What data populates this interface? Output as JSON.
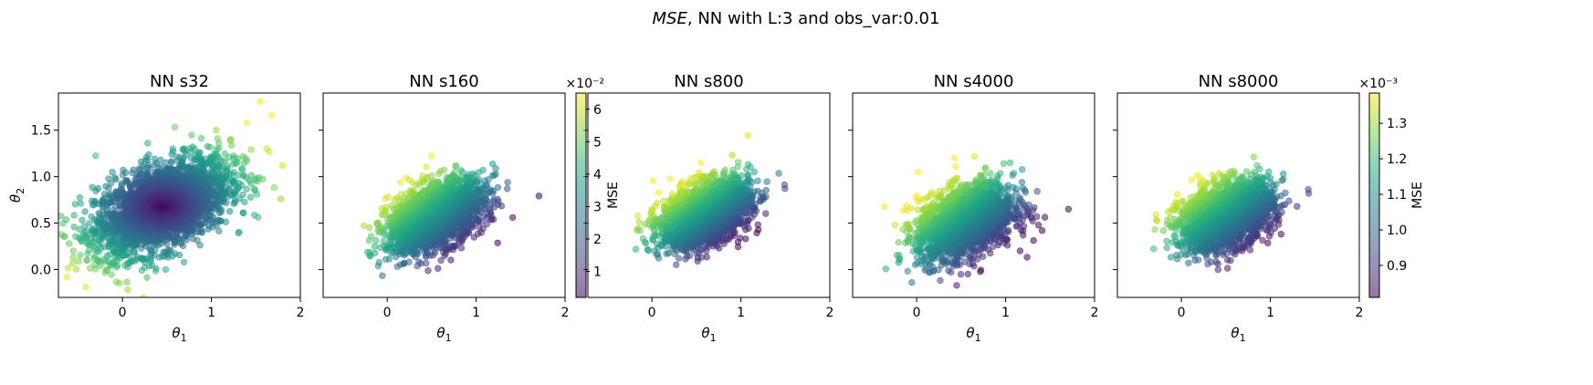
{
  "figure": {
    "title_italic": "MSE",
    "title_rest": ", NN with L:3 and obs_var:0.01"
  },
  "chart_data": [
    {
      "type": "scatter",
      "title": "NN s32",
      "xlabel": "θ1",
      "ylabel": "θ2",
      "xlim": [
        -0.72,
        2.0
      ],
      "ylim": [
        -0.3,
        1.9
      ],
      "xticks": [
        "0",
        "1",
        "2"
      ],
      "xtick_values": [
        0,
        1,
        2
      ],
      "yticks": [
        "0.0",
        "0.5",
        "1.0",
        "1.5"
      ],
      "ytick_values": [
        0.0,
        0.5,
        1.0,
        1.5
      ],
      "cloud": {
        "cx": 0.45,
        "cy": 0.68,
        "sx": 0.38,
        "sy": 0.26,
        "rho": 0.5,
        "n": 2600
      },
      "color_mode": "radial",
      "color_scale": "shared-left",
      "outliers": [
        {
          "x": 1.55,
          "y": 1.81
        },
        {
          "x": 1.68,
          "y": 1.66
        },
        {
          "x": 1.8,
          "y": 1.12
        },
        {
          "x": 1.78,
          "y": 0.76
        },
        {
          "x": -0.6,
          "y": 0.28
        },
        {
          "x": 1.4,
          "y": 1.58
        },
        {
          "x": 1.62,
          "y": 1.3
        },
        {
          "x": -0.4,
          "y": 0.1
        }
      ]
    },
    {
      "type": "scatter",
      "title": "NN s160",
      "xlabel": "θ1",
      "xlim": [
        -0.72,
        2.0
      ],
      "ylim": [
        -0.3,
        1.9
      ],
      "xticks": [
        "0",
        "1",
        "2"
      ],
      "xtick_values": [
        0,
        1,
        2
      ],
      "cloud": {
        "cx": 0.55,
        "cy": 0.58,
        "sx": 0.27,
        "sy": 0.19,
        "rho": 0.45,
        "n": 2000
      },
      "color_mode": "linear",
      "color_scale": "shared-left",
      "outliers": [
        {
          "x": -0.2,
          "y": 0.45
        },
        {
          "x": 1.35,
          "y": 0.87
        },
        {
          "x": 0.5,
          "y": 1.22
        }
      ]
    },
    {
      "type": "scatter",
      "title": "NN s800",
      "xlabel": "θ1",
      "xlim": [
        -0.72,
        2.0
      ],
      "ylim": [
        -0.3,
        1.9
      ],
      "xticks": [
        "0",
        "1",
        "2"
      ],
      "xtick_values": [
        0,
        1,
        2
      ],
      "cloud": {
        "cx": 0.6,
        "cy": 0.6,
        "sx": 0.25,
        "sy": 0.18,
        "rho": 0.4,
        "n": 2000
      },
      "color_mode": "linear",
      "color_scale": "shared-right",
      "outliers": [
        {
          "x": -0.05,
          "y": 0.22
        },
        {
          "x": 1.15,
          "y": 1.05
        },
        {
          "x": 0.55,
          "y": 1.15
        }
      ]
    },
    {
      "type": "scatter",
      "title": "NN s4000",
      "xlabel": "θ1",
      "xlim": [
        -0.72,
        2.0
      ],
      "ylim": [
        -0.3,
        1.9
      ],
      "xticks": [
        "0",
        "1",
        "2"
      ],
      "xtick_values": [
        0,
        1,
        2
      ],
      "cloud": {
        "cx": 0.55,
        "cy": 0.52,
        "sx": 0.27,
        "sy": 0.2,
        "rho": 0.35,
        "n": 2000
      },
      "color_mode": "linear",
      "color_scale": "shared-right",
      "outliers": [
        {
          "x": 0.45,
          "y": -0.17
        },
        {
          "x": 1.35,
          "y": 0.57
        },
        {
          "x": 1.05,
          "y": 1.15
        },
        {
          "x": 0.42,
          "y": 1.2
        }
      ]
    },
    {
      "type": "scatter",
      "title": "NN s8000",
      "xlabel": "θ1",
      "xlim": [
        -0.72,
        2.0
      ],
      "ylim": [
        -0.3,
        1.9
      ],
      "xticks": [
        "0",
        "1",
        "2"
      ],
      "xtick_values": [
        0,
        1,
        2
      ],
      "cloud": {
        "cx": 0.5,
        "cy": 0.58,
        "sx": 0.26,
        "sy": 0.18,
        "rho": 0.35,
        "n": 2000
      },
      "color_mode": "linear",
      "color_scale": "shared-right",
      "outliers": [
        {
          "x": -0.15,
          "y": 0.62
        },
        {
          "x": 1.3,
          "y": 0.68
        },
        {
          "x": 0.85,
          "y": 1.12
        }
      ]
    }
  ],
  "colorbars": [
    {
      "label": "MSE",
      "multiplier": "×10⁻²",
      "range": [
        0.2,
        6.5
      ],
      "ticks": [
        "1",
        "2",
        "3",
        "4",
        "5",
        "6"
      ],
      "tick_values": [
        1,
        2,
        3,
        4,
        5,
        6
      ]
    },
    {
      "label": "MSE",
      "multiplier": "×10⁻³",
      "range": [
        0.81,
        1.385
      ],
      "ticks": [
        "0.9",
        "1.0",
        "1.1",
        "1.2",
        "1.3"
      ],
      "tick_values": [
        0.9,
        1.0,
        1.1,
        1.2,
        1.3
      ]
    }
  ],
  "colormap": {
    "name": "viridis",
    "stops": [
      "#440154",
      "#482878",
      "#3e4a89",
      "#31688e",
      "#26828e",
      "#1f9e89",
      "#35b779",
      "#6ece58",
      "#b5de2b",
      "#fde725"
    ]
  }
}
